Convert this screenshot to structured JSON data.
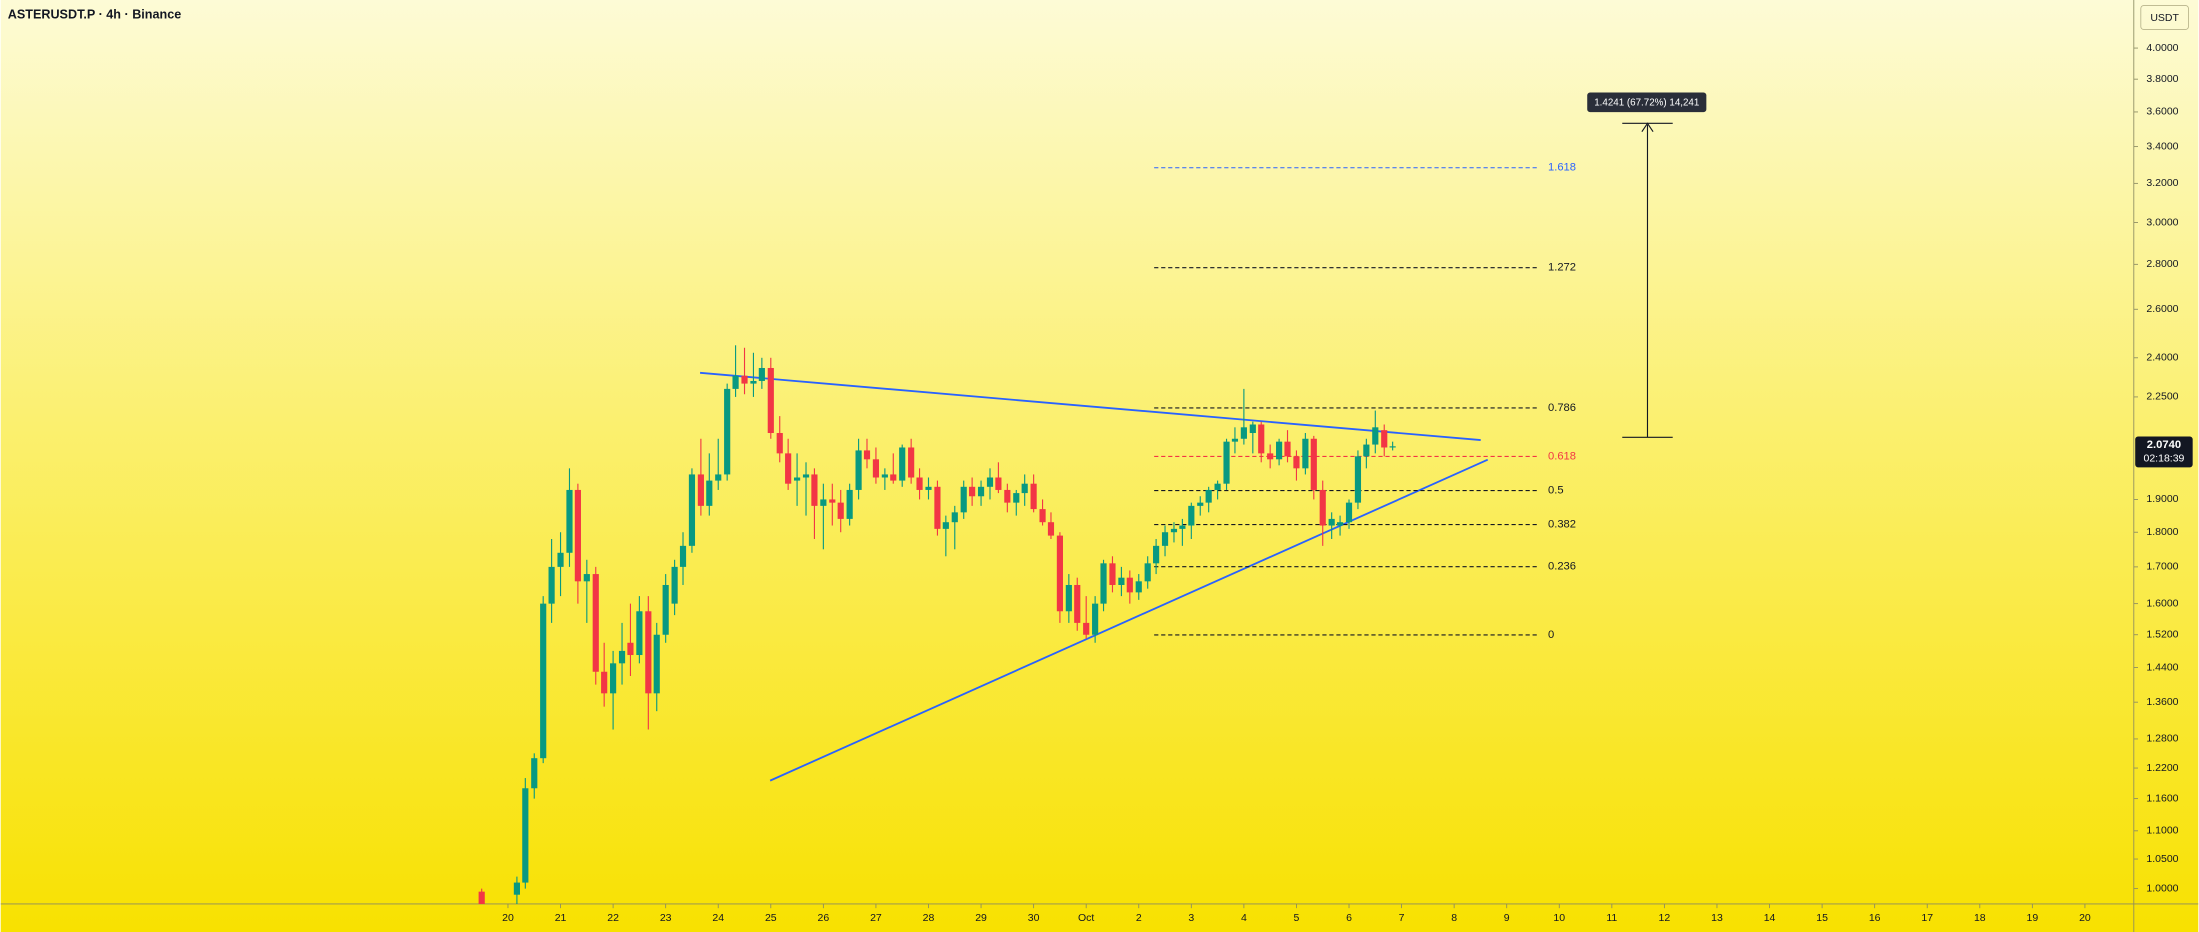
{
  "header": {
    "title": "ASTERUSDT.P · 4h · Binance"
  },
  "chart_data": {
    "type": "candlestick",
    "x": [
      19.5,
      20.17,
      20.33,
      20.5,
      20.67,
      20.83,
      21,
      21.17,
      21.33,
      21.5,
      21.67,
      21.83,
      22,
      22.17,
      22.33,
      22.5,
      22.67,
      22.83,
      23,
      23.17,
      23.33,
      23.5,
      23.67,
      23.83,
      24,
      24.17,
      24.33,
      24.5,
      24.67,
      24.83,
      25,
      25.17,
      25.33,
      25.5,
      25.67,
      25.83,
      26,
      26.17,
      26.33,
      26.5,
      26.67,
      26.83,
      27,
      27.17,
      27.33,
      27.5,
      27.67,
      27.83,
      28,
      28.17,
      28.33,
      28.5,
      28.67,
      28.83,
      29,
      29.17,
      29.33,
      29.5,
      29.67,
      29.83,
      30,
      30.17,
      30.33,
      30.5,
      30.67,
      30.83,
      31,
      31.17,
      31.33,
      31.5,
      31.67,
      31.83,
      32,
      32.17,
      32.33,
      32.5,
      32.67,
      32.83,
      33,
      33.17,
      33.33,
      33.5,
      33.67,
      33.83,
      34,
      34.17,
      34.33,
      34.5,
      34.67,
      34.83,
      35,
      35.17,
      35.33,
      35.5,
      35.67,
      35.83,
      36,
      36.17,
      36.33,
      36.5,
      36.67,
      36.83
    ],
    "open": [
      0.995,
      0.99,
      1.01,
      1.18,
      1.24,
      1.6,
      1.7,
      1.74,
      1.93,
      1.66,
      1.68,
      1.43,
      1.38,
      1.45,
      1.5,
      1.47,
      1.58,
      1.38,
      1.52,
      1.6,
      1.7,
      1.76,
      1.98,
      1.88,
      1.96,
      1.98,
      2.28,
      2.33,
      2.3,
      2.31,
      2.36,
      2.12,
      2.05,
      1.96,
      1.97,
      1.98,
      1.88,
      1.9,
      1.89,
      1.84,
      1.93,
      2.06,
      2.03,
      1.97,
      1.98,
      1.96,
      2.07,
      1.97,
      1.93,
      1.94,
      1.81,
      1.83,
      1.86,
      1.94,
      1.91,
      1.94,
      1.97,
      1.93,
      1.89,
      1.92,
      1.95,
      1.87,
      1.83,
      1.79,
      1.58,
      1.65,
      1.55,
      1.52,
      1.6,
      1.71,
      1.65,
      1.67,
      1.63,
      1.66,
      1.71,
      1.76,
      1.8,
      1.81,
      1.82,
      1.88,
      1.89,
      1.93,
      1.95,
      2.09,
      2.1,
      2.12,
      2.15,
      2.05,
      2.03,
      2.09,
      2.04,
      2.0,
      2.1,
      1.93,
      1.82,
      1.82,
      1.83,
      1.89,
      2.04,
      2.08,
      2.13,
      2.07
    ],
    "high": [
      1.0,
      1.02,
      1.2,
      1.25,
      1.62,
      1.78,
      1.8,
      2.0,
      1.95,
      1.72,
      1.7,
      1.5,
      1.48,
      1.55,
      1.6,
      1.62,
      1.62,
      1.55,
      1.68,
      1.72,
      1.8,
      2.0,
      2.1,
      2.05,
      2.1,
      2.3,
      2.45,
      2.44,
      2.42,
      2.4,
      2.4,
      2.18,
      2.1,
      2.05,
      2.02,
      2.0,
      1.95,
      1.95,
      1.93,
      1.95,
      2.1,
      2.1,
      2.07,
      2.0,
      2.05,
      2.08,
      2.1,
      2.0,
      1.97,
      1.96,
      1.85,
      1.88,
      1.96,
      1.97,
      1.96,
      2.0,
      2.02,
      1.95,
      1.93,
      1.98,
      1.98,
      1.9,
      1.86,
      1.8,
      1.68,
      1.67,
      1.62,
      1.62,
      1.72,
      1.73,
      1.7,
      1.69,
      1.68,
      1.73,
      1.78,
      1.82,
      1.83,
      1.84,
      1.89,
      1.91,
      1.94,
      1.96,
      2.1,
      2.14,
      2.28,
      2.16,
      2.16,
      2.08,
      2.1,
      2.13,
      2.06,
      2.12,
      2.11,
      1.96,
      1.86,
      1.85,
      1.9,
      2.06,
      2.1,
      2.2,
      2.15,
      2.09
    ],
    "low": [
      0.97,
      0.97,
      1.0,
      1.16,
      1.23,
      1.55,
      1.62,
      1.7,
      1.6,
      1.55,
      1.4,
      1.35,
      1.3,
      1.4,
      1.42,
      1.45,
      1.3,
      1.34,
      1.5,
      1.57,
      1.65,
      1.74,
      1.85,
      1.85,
      1.93,
      1.96,
      2.25,
      2.26,
      2.25,
      2.28,
      2.1,
      2.02,
      1.93,
      1.88,
      1.85,
      1.78,
      1.75,
      1.82,
      1.8,
      1.82,
      1.9,
      2.0,
      1.95,
      1.93,
      1.95,
      1.94,
      1.95,
      1.9,
      1.9,
      1.79,
      1.73,
      1.75,
      1.84,
      1.88,
      1.88,
      1.9,
      1.92,
      1.86,
      1.85,
      1.88,
      1.86,
      1.82,
      1.78,
      1.55,
      1.55,
      1.53,
      1.51,
      1.5,
      1.58,
      1.63,
      1.62,
      1.6,
      1.61,
      1.64,
      1.68,
      1.73,
      1.77,
      1.76,
      1.78,
      1.85,
      1.86,
      1.9,
      1.93,
      2.05,
      2.08,
      2.05,
      2.02,
      2.0,
      2.01,
      2.02,
      1.96,
      1.98,
      1.9,
      1.76,
      1.78,
      1.79,
      1.81,
      1.87,
      2.0,
      2.05,
      2.04,
      2.06
    ],
    "close": [
      0.975,
      1.01,
      1.18,
      1.24,
      1.6,
      1.7,
      1.74,
      1.93,
      1.66,
      1.68,
      1.43,
      1.38,
      1.45,
      1.48,
      1.47,
      1.58,
      1.38,
      1.52,
      1.65,
      1.7,
      1.76,
      1.98,
      1.88,
      1.96,
      1.98,
      2.28,
      2.33,
      2.3,
      2.31,
      2.36,
      2.12,
      2.05,
      1.95,
      1.97,
      1.98,
      1.88,
      1.9,
      1.89,
      1.84,
      1.93,
      2.06,
      2.03,
      1.97,
      1.98,
      1.96,
      2.07,
      1.97,
      1.93,
      1.94,
      1.81,
      1.83,
      1.86,
      1.94,
      1.91,
      1.94,
      1.97,
      1.93,
      1.89,
      1.92,
      1.95,
      1.87,
      1.83,
      1.79,
      1.58,
      1.65,
      1.55,
      1.52,
      1.6,
      1.71,
      1.65,
      1.67,
      1.63,
      1.66,
      1.71,
      1.76,
      1.8,
      1.81,
      1.82,
      1.88,
      1.89,
      1.93,
      1.95,
      2.09,
      2.1,
      2.14,
      2.15,
      2.05,
      2.03,
      2.09,
      2.04,
      2.0,
      2.1,
      1.93,
      1.82,
      1.84,
      1.83,
      1.89,
      2.04,
      2.08,
      2.14,
      2.07,
      2.074
    ],
    "up_color": "#089981",
    "down_color": "#f23645",
    "xlim": [
      10.35,
      50.93
    ],
    "xticks": [
      20,
      21,
      22,
      23,
      24,
      25,
      26,
      27,
      28,
      29,
      30,
      {
        "value": 31,
        "label": "Oct"
      },
      {
        "value": 32,
        "label": "2"
      },
      {
        "value": 33,
        "label": "3"
      },
      {
        "value": 34,
        "label": "4"
      },
      {
        "value": 35,
        "label": "5"
      },
      {
        "value": 36,
        "label": "6"
      },
      {
        "value": 37,
        "label": "7"
      },
      {
        "value": 38,
        "label": "8"
      },
      {
        "value": 39,
        "label": "9"
      },
      {
        "value": 40,
        "label": "10"
      },
      {
        "value": 41,
        "label": "11"
      },
      {
        "value": 42,
        "label": "12"
      },
      {
        "value": 43,
        "label": "13"
      },
      {
        "value": 44,
        "label": "14"
      },
      {
        "value": 45,
        "label": "15"
      },
      {
        "value": 46,
        "label": "16"
      },
      {
        "value": 47,
        "label": "17"
      },
      {
        "value": 48,
        "label": "18"
      },
      {
        "value": 49,
        "label": "19"
      },
      {
        "value": 50,
        "label": "20"
      }
    ],
    "ylim": [
      0.975,
      4.33
    ],
    "log_scale": true,
    "yticks": [
      {
        "value": 4,
        "label": "4.0000"
      },
      {
        "value": 3.8,
        "label": "3.8000"
      },
      {
        "value": 3.6,
        "label": "3.6000"
      },
      {
        "value": 3.4,
        "label": "3.4000"
      },
      {
        "value": 3.2,
        "label": "3.2000"
      },
      {
        "value": 3,
        "label": "3.0000"
      },
      {
        "value": 2.8,
        "label": "2.8000"
      },
      {
        "value": 2.6,
        "label": "2.6000"
      },
      {
        "value": 2.4,
        "label": "2.4000"
      },
      {
        "value": 2.25,
        "label": "2.2500"
      },
      {
        "value": 1.9,
        "label": "1.9000"
      },
      {
        "value": 1.8,
        "label": "1.8000"
      },
      {
        "value": 1.7,
        "label": "1.7000"
      },
      {
        "value": 1.6,
        "label": "1.6000"
      },
      {
        "value": 1.52,
        "label": "1.5200"
      },
      {
        "value": 1.44,
        "label": "1.4400"
      },
      {
        "value": 1.36,
        "label": "1.3600"
      },
      {
        "value": 1.28,
        "label": "1.2800"
      },
      {
        "value": 1.22,
        "label": "1.2200"
      },
      {
        "value": 1.16,
        "label": "1.1600"
      },
      {
        "value": 1.1,
        "label": "1.1000"
      },
      {
        "value": 1.05,
        "label": "1.0500"
      },
      {
        "value": 1,
        "label": "1.0000"
      }
    ],
    "y_unit": "USDT",
    "last_price": {
      "value": 2.074,
      "label": "2.0740"
    },
    "countdown": "02:18:39",
    "fib_levels": [
      0,
      0.236,
      0.382,
      0.5,
      0.618,
      0.786,
      1.272,
      1.618
    ],
    "fib_colors": [
      "#131722",
      "#131722",
      "#131722",
      "#131722",
      "#f23645",
      "#131722",
      "#131722",
      "#2962ff"
    ],
    "trend_color": "#2962ff",
    "measure_label": "1.4241 (67.72%) 14,241"
  }
}
